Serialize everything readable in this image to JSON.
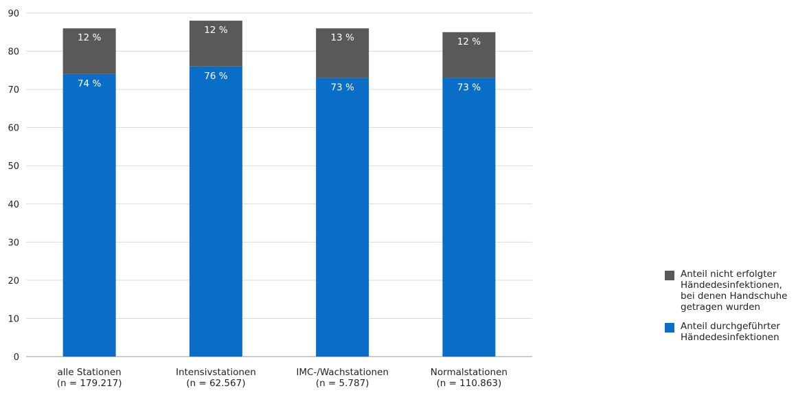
{
  "chart_data": {
    "type": "bar",
    "stacked": true,
    "categories": [
      "alle Stationen\n(n = 179.217)",
      "Intensivstationen\n(n = 62.567)",
      "IMC-/Wachstationen\n(n = 5.787)",
      "Normalstationen\n(n = 110.863)"
    ],
    "series": [
      {
        "name": "Anteil durchgeführter\nHändedesinfektionen",
        "values": [
          74,
          76,
          73,
          73
        ],
        "labels": [
          "74 %",
          "76 %",
          "73 %",
          "73 %"
        ],
        "color": "#0a6ec8"
      },
      {
        "name": "Anteil nicht erfolgter\nHändedesinfektionen,\nbei denen Handschuhe\ngetragen wurden",
        "values": [
          12,
          12,
          13,
          12
        ],
        "labels": [
          "12 %",
          "12 %",
          "13 %",
          "12 %"
        ],
        "color": "#595959"
      }
    ],
    "title": "",
    "xlabel": "",
    "ylabel": "",
    "ylim": [
      0,
      90
    ],
    "yticks": [
      0,
      10,
      20,
      30,
      40,
      50,
      60,
      70,
      80,
      90
    ],
    "grid": true,
    "legend_position": "right"
  }
}
